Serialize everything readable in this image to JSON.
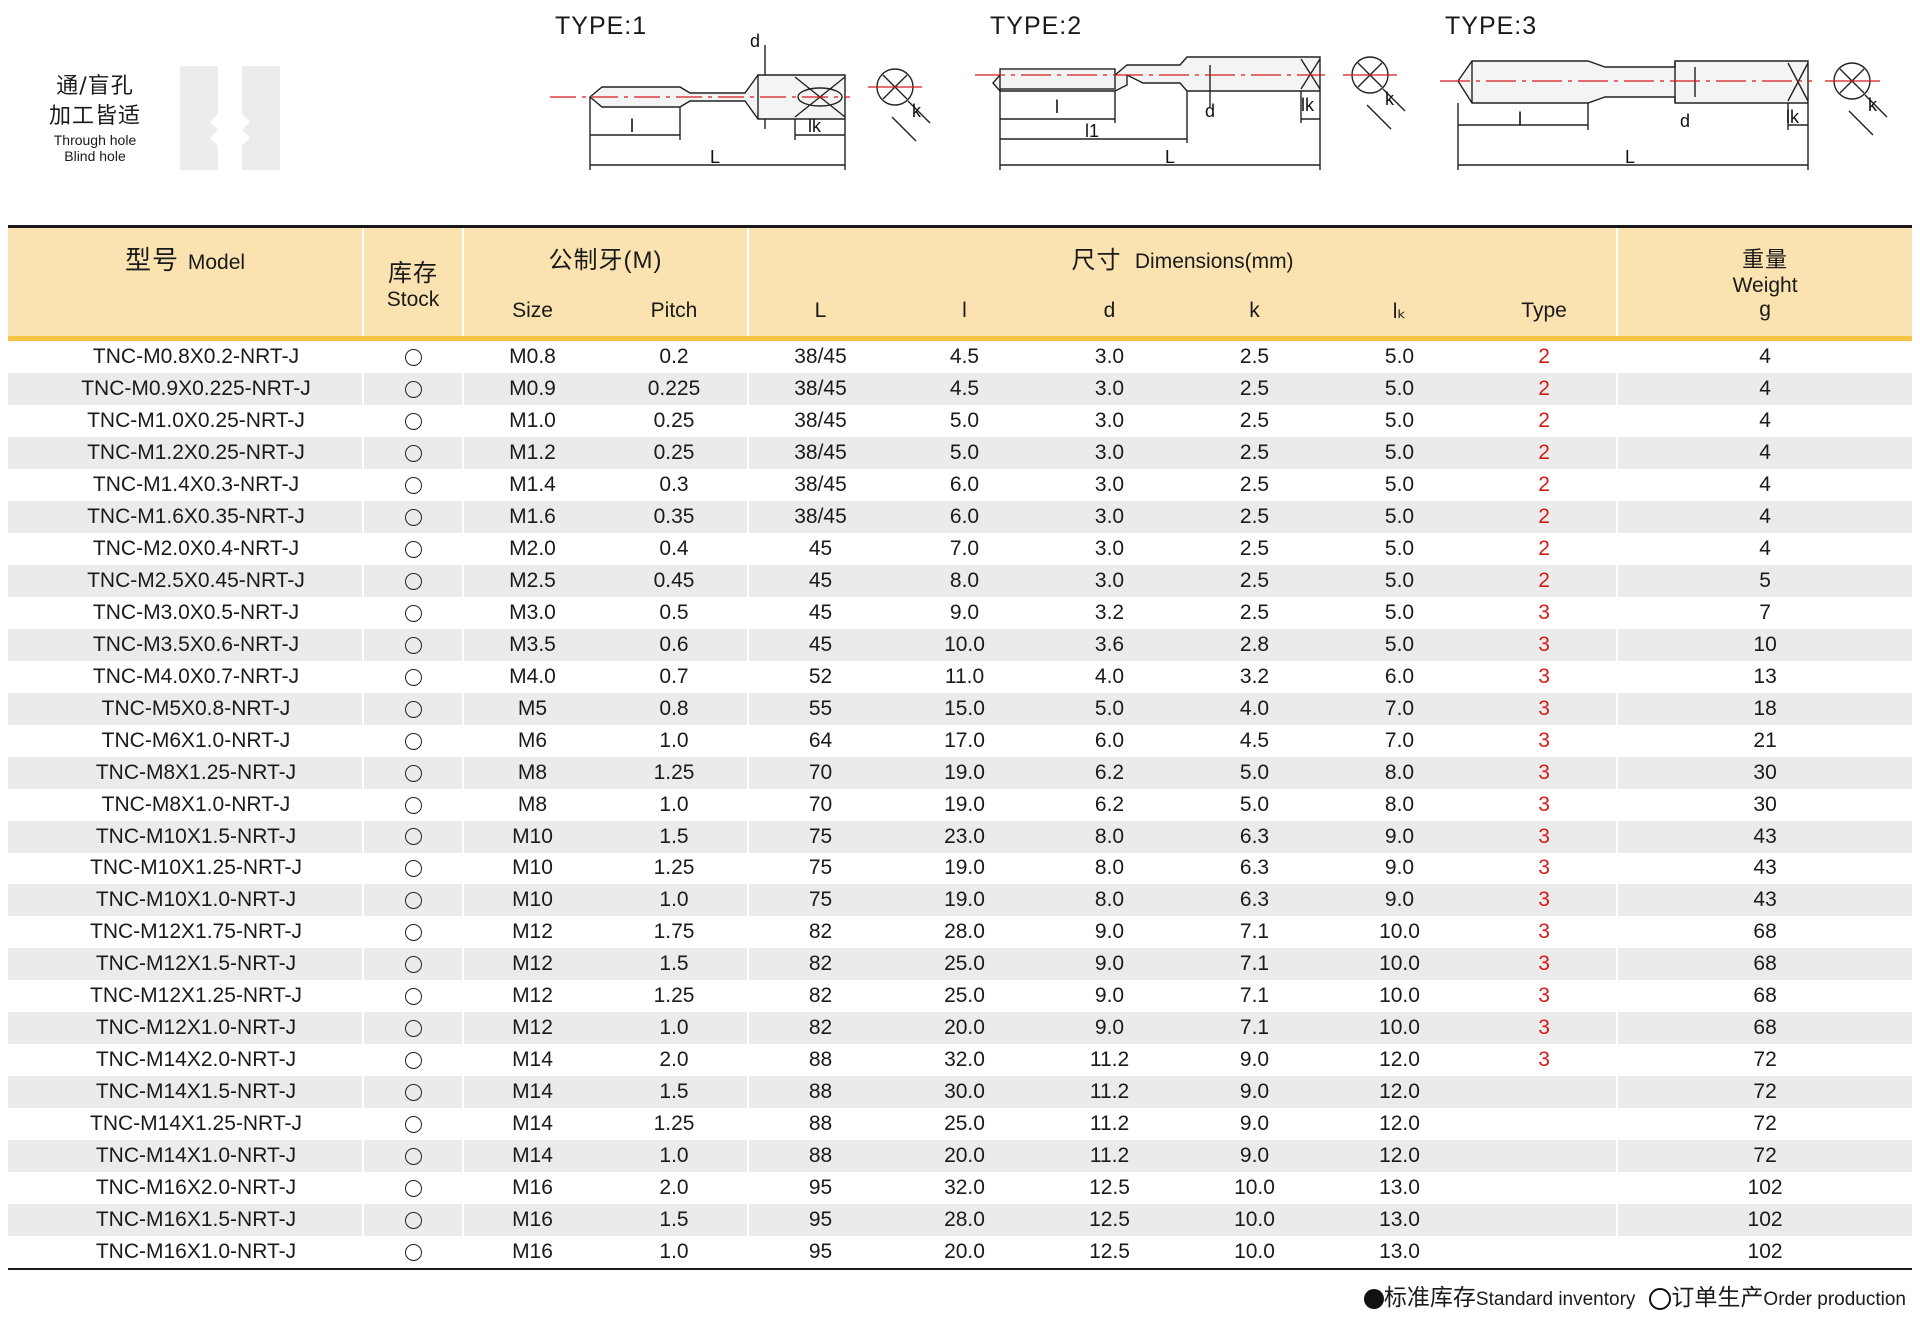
{
  "hole": {
    "cn_line1": "通/盲孔",
    "cn_line2": "加工皆适",
    "en_line1": "Through hole",
    "en_line2": "Blind hole"
  },
  "diagrams": [
    {
      "type_label": "TYPE:1",
      "labels": {
        "d": "d",
        "l": "l",
        "lk": "lk",
        "L": "L",
        "k": "k"
      }
    },
    {
      "type_label": "TYPE:2",
      "labels": {
        "d": "d",
        "l": "l",
        "l1": "l1",
        "lk": "lk",
        "L": "L",
        "k": "k"
      }
    },
    {
      "type_label": "TYPE:3",
      "labels": {
        "d": "d",
        "l": "l",
        "lk": "lk",
        "L": "L",
        "k": "k"
      }
    }
  ],
  "table": {
    "headers": {
      "model_cn": "型号",
      "model_en": "Model",
      "stock_cn": "库存",
      "stock_en": "Stock",
      "metric_cn": "公制牙(M)",
      "size": "Size",
      "pitch": "Pitch",
      "dims_cn": "尺寸",
      "dims_en": "Dimensions(mm)",
      "L": "L",
      "l": "l",
      "d": "d",
      "k": "k",
      "lk": "lₖ",
      "type": "Type",
      "weight_cn": "重量",
      "weight_en": "Weight",
      "weight_unit": "g"
    },
    "stock_symbol": "open-circle",
    "type_color": "#d41a1a",
    "rows": [
      {
        "model": "TNC-M0.8X0.2-NRT-J",
        "size": "M0.8",
        "pitch": "0.2",
        "L": "38/45",
        "l": "4.5",
        "d": "3.0",
        "k": "2.5",
        "lk": "5.0",
        "type": "2",
        "weight": "4"
      },
      {
        "model": "TNC-M0.9X0.225-NRT-J",
        "size": "M0.9",
        "pitch": "0.225",
        "L": "38/45",
        "l": "4.5",
        "d": "3.0",
        "k": "2.5",
        "lk": "5.0",
        "type": "2",
        "weight": "4"
      },
      {
        "model": "TNC-M1.0X0.25-NRT-J",
        "size": "M1.0",
        "pitch": "0.25",
        "L": "38/45",
        "l": "5.0",
        "d": "3.0",
        "k": "2.5",
        "lk": "5.0",
        "type": "2",
        "weight": "4"
      },
      {
        "model": "TNC-M1.2X0.25-NRT-J",
        "size": "M1.2",
        "pitch": "0.25",
        "L": "38/45",
        "l": "5.0",
        "d": "3.0",
        "k": "2.5",
        "lk": "5.0",
        "type": "2",
        "weight": "4"
      },
      {
        "model": "TNC-M1.4X0.3-NRT-J",
        "size": "M1.4",
        "pitch": "0.3",
        "L": "38/45",
        "l": "6.0",
        "d": "3.0",
        "k": "2.5",
        "lk": "5.0",
        "type": "2",
        "weight": "4"
      },
      {
        "model": "TNC-M1.6X0.35-NRT-J",
        "size": "M1.6",
        "pitch": "0.35",
        "L": "38/45",
        "l": "6.0",
        "d": "3.0",
        "k": "2.5",
        "lk": "5.0",
        "type": "2",
        "weight": "4"
      },
      {
        "model": "TNC-M2.0X0.4-NRT-J",
        "size": "M2.0",
        "pitch": "0.4",
        "L": "45",
        "l": "7.0",
        "d": "3.0",
        "k": "2.5",
        "lk": "5.0",
        "type": "2",
        "weight": "4"
      },
      {
        "model": "TNC-M2.5X0.45-NRT-J",
        "size": "M2.5",
        "pitch": "0.45",
        "L": "45",
        "l": "8.0",
        "d": "3.0",
        "k": "2.5",
        "lk": "5.0",
        "type": "2",
        "weight": "5"
      },
      {
        "model": "TNC-M3.0X0.5-NRT-J",
        "size": "M3.0",
        "pitch": "0.5",
        "L": "45",
        "l": "9.0",
        "d": "3.2",
        "k": "2.5",
        "lk": "5.0",
        "type": "3",
        "weight": "7"
      },
      {
        "model": "TNC-M3.5X0.6-NRT-J",
        "size": "M3.5",
        "pitch": "0.6",
        "L": "45",
        "l": "10.0",
        "d": "3.6",
        "k": "2.8",
        "lk": "5.0",
        "type": "3",
        "weight": "10"
      },
      {
        "model": "TNC-M4.0X0.7-NRT-J",
        "size": "M4.0",
        "pitch": "0.7",
        "L": "52",
        "l": "11.0",
        "d": "4.0",
        "k": "3.2",
        "lk": "6.0",
        "type": "3",
        "weight": "13"
      },
      {
        "model": "TNC-M5X0.8-NRT-J",
        "size": "M5",
        "pitch": "0.8",
        "L": "55",
        "l": "15.0",
        "d": "5.0",
        "k": "4.0",
        "lk": "7.0",
        "type": "3",
        "weight": "18"
      },
      {
        "model": "TNC-M6X1.0-NRT-J",
        "size": "M6",
        "pitch": "1.0",
        "L": "64",
        "l": "17.0",
        "d": "6.0",
        "k": "4.5",
        "lk": "7.0",
        "type": "3",
        "weight": "21"
      },
      {
        "model": "TNC-M8X1.25-NRT-J",
        "size": "M8",
        "pitch": "1.25",
        "L": "70",
        "l": "19.0",
        "d": "6.2",
        "k": "5.0",
        "lk": "8.0",
        "type": "3",
        "weight": "30"
      },
      {
        "model": "TNC-M8X1.0-NRT-J",
        "size": "M8",
        "pitch": "1.0",
        "L": "70",
        "l": "19.0",
        "d": "6.2",
        "k": "5.0",
        "lk": "8.0",
        "type": "3",
        "weight": "30"
      },
      {
        "model": "TNC-M10X1.5-NRT-J",
        "size": "M10",
        "pitch": "1.5",
        "L": "75",
        "l": "23.0",
        "d": "8.0",
        "k": "6.3",
        "lk": "9.0",
        "type": "3",
        "weight": "43"
      },
      {
        "model": "TNC-M10X1.25-NRT-J",
        "size": "M10",
        "pitch": "1.25",
        "L": "75",
        "l": "19.0",
        "d": "8.0",
        "k": "6.3",
        "lk": "9.0",
        "type": "3",
        "weight": "43"
      },
      {
        "model": "TNC-M10X1.0-NRT-J",
        "size": "M10",
        "pitch": "1.0",
        "L": "75",
        "l": "19.0",
        "d": "8.0",
        "k": "6.3",
        "lk": "9.0",
        "type": "3",
        "weight": "43"
      },
      {
        "model": "TNC-M12X1.75-NRT-J",
        "size": "M12",
        "pitch": "1.75",
        "L": "82",
        "l": "28.0",
        "d": "9.0",
        "k": "7.1",
        "lk": "10.0",
        "type": "3",
        "weight": "68"
      },
      {
        "model": "TNC-M12X1.5-NRT-J",
        "size": "M12",
        "pitch": "1.5",
        "L": "82",
        "l": "25.0",
        "d": "9.0",
        "k": "7.1",
        "lk": "10.0",
        "type": "3",
        "weight": "68"
      },
      {
        "model": "TNC-M12X1.25-NRT-J",
        "size": "M12",
        "pitch": "1.25",
        "L": "82",
        "l": "25.0",
        "d": "9.0",
        "k": "7.1",
        "lk": "10.0",
        "type": "3",
        "weight": "68"
      },
      {
        "model": "TNC-M12X1.0-NRT-J",
        "size": "M12",
        "pitch": "1.0",
        "L": "82",
        "l": "20.0",
        "d": "9.0",
        "k": "7.1",
        "lk": "10.0",
        "type": "3",
        "weight": "68"
      },
      {
        "model": "TNC-M14X2.0-NRT-J",
        "size": "M14",
        "pitch": "2.0",
        "L": "88",
        "l": "32.0",
        "d": "11.2",
        "k": "9.0",
        "lk": "12.0",
        "type": "3",
        "weight": "72"
      },
      {
        "model": "TNC-M14X1.5-NRT-J",
        "size": "M14",
        "pitch": "1.5",
        "L": "88",
        "l": "30.0",
        "d": "11.2",
        "k": "9.0",
        "lk": "12.0",
        "type": "",
        "weight": "72"
      },
      {
        "model": "TNC-M14X1.25-NRT-J",
        "size": "M14",
        "pitch": "1.25",
        "L": "88",
        "l": "25.0",
        "d": "11.2",
        "k": "9.0",
        "lk": "12.0",
        "type": "",
        "weight": "72"
      },
      {
        "model": "TNC-M14X1.0-NRT-J",
        "size": "M14",
        "pitch": "1.0",
        "L": "88",
        "l": "20.0",
        "d": "11.2",
        "k": "9.0",
        "lk": "12.0",
        "type": "",
        "weight": "72"
      },
      {
        "model": "TNC-M16X2.0-NRT-J",
        "size": "M16",
        "pitch": "2.0",
        "L": "95",
        "l": "32.0",
        "d": "12.5",
        "k": "10.0",
        "lk": "13.0",
        "type": "",
        "weight": "102"
      },
      {
        "model": "TNC-M16X1.5-NRT-J",
        "size": "M16",
        "pitch": "1.5",
        "L": "95",
        "l": "28.0",
        "d": "12.5",
        "k": "10.0",
        "lk": "13.0",
        "type": "",
        "weight": "102"
      },
      {
        "model": "TNC-M16X1.0-NRT-J",
        "size": "M16",
        "pitch": "1.0",
        "L": "95",
        "l": "20.0",
        "d": "12.5",
        "k": "10.0",
        "lk": "13.0",
        "type": "",
        "weight": "102"
      }
    ]
  },
  "legend": {
    "standard_cn": "标准库存",
    "standard_en": "Standard inventory",
    "order_cn": "订单生产",
    "order_en": "Order production"
  }
}
